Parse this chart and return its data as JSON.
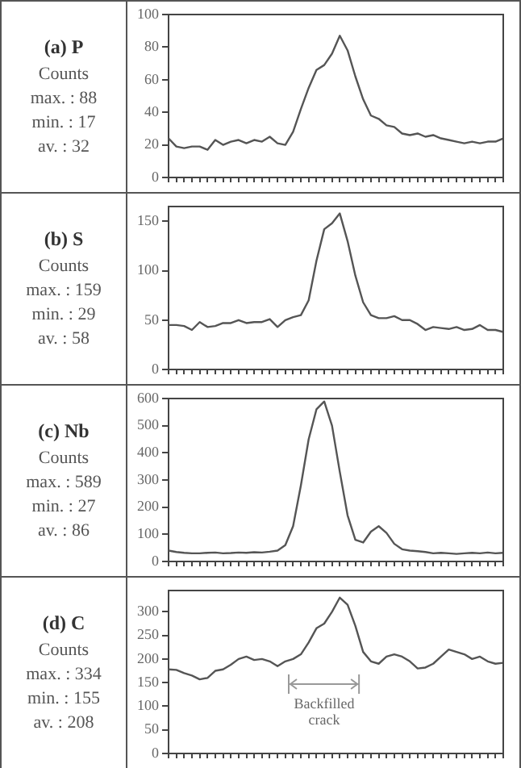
{
  "chart_data": [
    {
      "type": "line",
      "title": "(a) P",
      "annotations": [
        "Counts",
        "max. : 88",
        "min. : 17",
        "av. : 32"
      ],
      "categories": [
        null,
        null,
        null,
        null,
        null,
        null,
        null,
        null,
        null,
        null,
        null,
        null,
        null,
        null,
        null,
        null,
        null,
        null,
        null,
        null,
        null,
        null,
        null,
        null,
        null,
        null,
        null,
        null,
        null,
        null,
        null,
        null,
        null,
        null,
        null,
        null,
        null,
        null,
        null,
        null,
        null,
        null,
        null,
        null
      ],
      "series": [
        {
          "color": "#555555",
          "values": [
            24,
            19,
            18,
            19,
            19,
            17,
            23,
            20,
            22,
            23,
            21,
            23,
            22,
            25,
            21,
            20,
            28,
            42,
            55,
            66,
            69,
            76,
            87,
            78,
            62,
            48,
            38,
            36,
            32,
            31,
            27,
            26,
            27,
            25,
            26,
            24,
            23,
            22,
            21,
            22,
            21,
            22,
            22,
            24
          ]
        }
      ],
      "ylim": [
        0,
        100
      ],
      "yticks": [
        0,
        20,
        40,
        60,
        80,
        100
      ],
      "grid": false,
      "legend": false,
      "tick_labels": "y",
      "marker": "none",
      "line_style": "solid"
    },
    {
      "type": "line",
      "title": "(b) S",
      "annotations": [
        "Counts",
        "max. : 159",
        "min. : 29",
        "av. : 58"
      ],
      "categories": [
        null,
        null,
        null,
        null,
        null,
        null,
        null,
        null,
        null,
        null,
        null,
        null,
        null,
        null,
        null,
        null,
        null,
        null,
        null,
        null,
        null,
        null,
        null,
        null,
        null,
        null,
        null,
        null,
        null,
        null,
        null,
        null,
        null,
        null,
        null,
        null,
        null,
        null,
        null,
        null,
        null,
        null,
        null,
        null
      ],
      "series": [
        {
          "color": "#555555",
          "values": [
            45,
            45,
            44,
            40,
            48,
            43,
            44,
            47,
            47,
            50,
            47,
            48,
            48,
            51,
            43,
            50,
            53,
            55,
            70,
            110,
            142,
            148,
            158,
            130,
            95,
            68,
            55,
            52,
            52,
            54,
            50,
            50,
            46,
            40,
            43,
            42,
            41,
            43,
            40,
            41,
            45,
            40,
            40,
            38
          ]
        }
      ],
      "ylim": [
        0,
        165
      ],
      "yticks": [
        0,
        50,
        100,
        150
      ],
      "grid": false,
      "legend": false,
      "tick_labels": "y",
      "marker": "none",
      "line_style": "solid"
    },
    {
      "type": "line",
      "title": "(c) Nb",
      "annotations": [
        "Counts",
        "max. : 589",
        "min. : 27",
        "av. : 86"
      ],
      "categories": [
        null,
        null,
        null,
        null,
        null,
        null,
        null,
        null,
        null,
        null,
        null,
        null,
        null,
        null,
        null,
        null,
        null,
        null,
        null,
        null,
        null,
        null,
        null,
        null,
        null,
        null,
        null,
        null,
        null,
        null,
        null,
        null,
        null,
        null,
        null,
        null,
        null,
        null,
        null,
        null,
        null,
        null,
        null,
        null
      ],
      "series": [
        {
          "color": "#555555",
          "values": [
            40,
            35,
            32,
            30,
            30,
            32,
            33,
            30,
            31,
            33,
            32,
            34,
            33,
            36,
            40,
            60,
            130,
            280,
            450,
            560,
            589,
            500,
            330,
            170,
            80,
            70,
            110,
            130,
            105,
            65,
            45,
            40,
            38,
            35,
            30,
            32,
            30,
            28,
            30,
            32,
            30,
            33,
            30,
            32
          ]
        }
      ],
      "ylim": [
        0,
        600
      ],
      "yticks": [
        0,
        100,
        200,
        300,
        400,
        500,
        600
      ],
      "grid": false,
      "legend": false,
      "tick_labels": "y",
      "marker": "none",
      "line_style": "solid"
    },
    {
      "type": "line",
      "title": "(d) C",
      "annotations": [
        "Counts",
        "max. : 334",
        "min. : 155",
        "av. : 208",
        "Backfilled crack"
      ],
      "categories": [
        null,
        null,
        null,
        null,
        null,
        null,
        null,
        null,
        null,
        null,
        null,
        null,
        null,
        null,
        null,
        null,
        null,
        null,
        null,
        null,
        null,
        null,
        null,
        null,
        null,
        null,
        null,
        null,
        null,
        null,
        null,
        null,
        null,
        null,
        null,
        null,
        null,
        null,
        null,
        null,
        null,
        null,
        null,
        null
      ],
      "series": [
        {
          "color": "#555555",
          "values": [
            178,
            177,
            170,
            165,
            157,
            160,
            175,
            178,
            188,
            200,
            205,
            198,
            200,
            195,
            185,
            195,
            200,
            210,
            235,
            265,
            275,
            300,
            330,
            315,
            270,
            215,
            195,
            190,
            205,
            210,
            205,
            195,
            180,
            182,
            190,
            205,
            220,
            215,
            210,
            200,
            205,
            195,
            190,
            192
          ]
        }
      ],
      "ylim": [
        0,
        345
      ],
      "yticks": [
        0,
        50,
        100,
        150,
        200,
        250,
        300
      ],
      "grid": false,
      "legend": false,
      "tick_labels": "y",
      "marker": "none",
      "line_style": "solid"
    }
  ]
}
